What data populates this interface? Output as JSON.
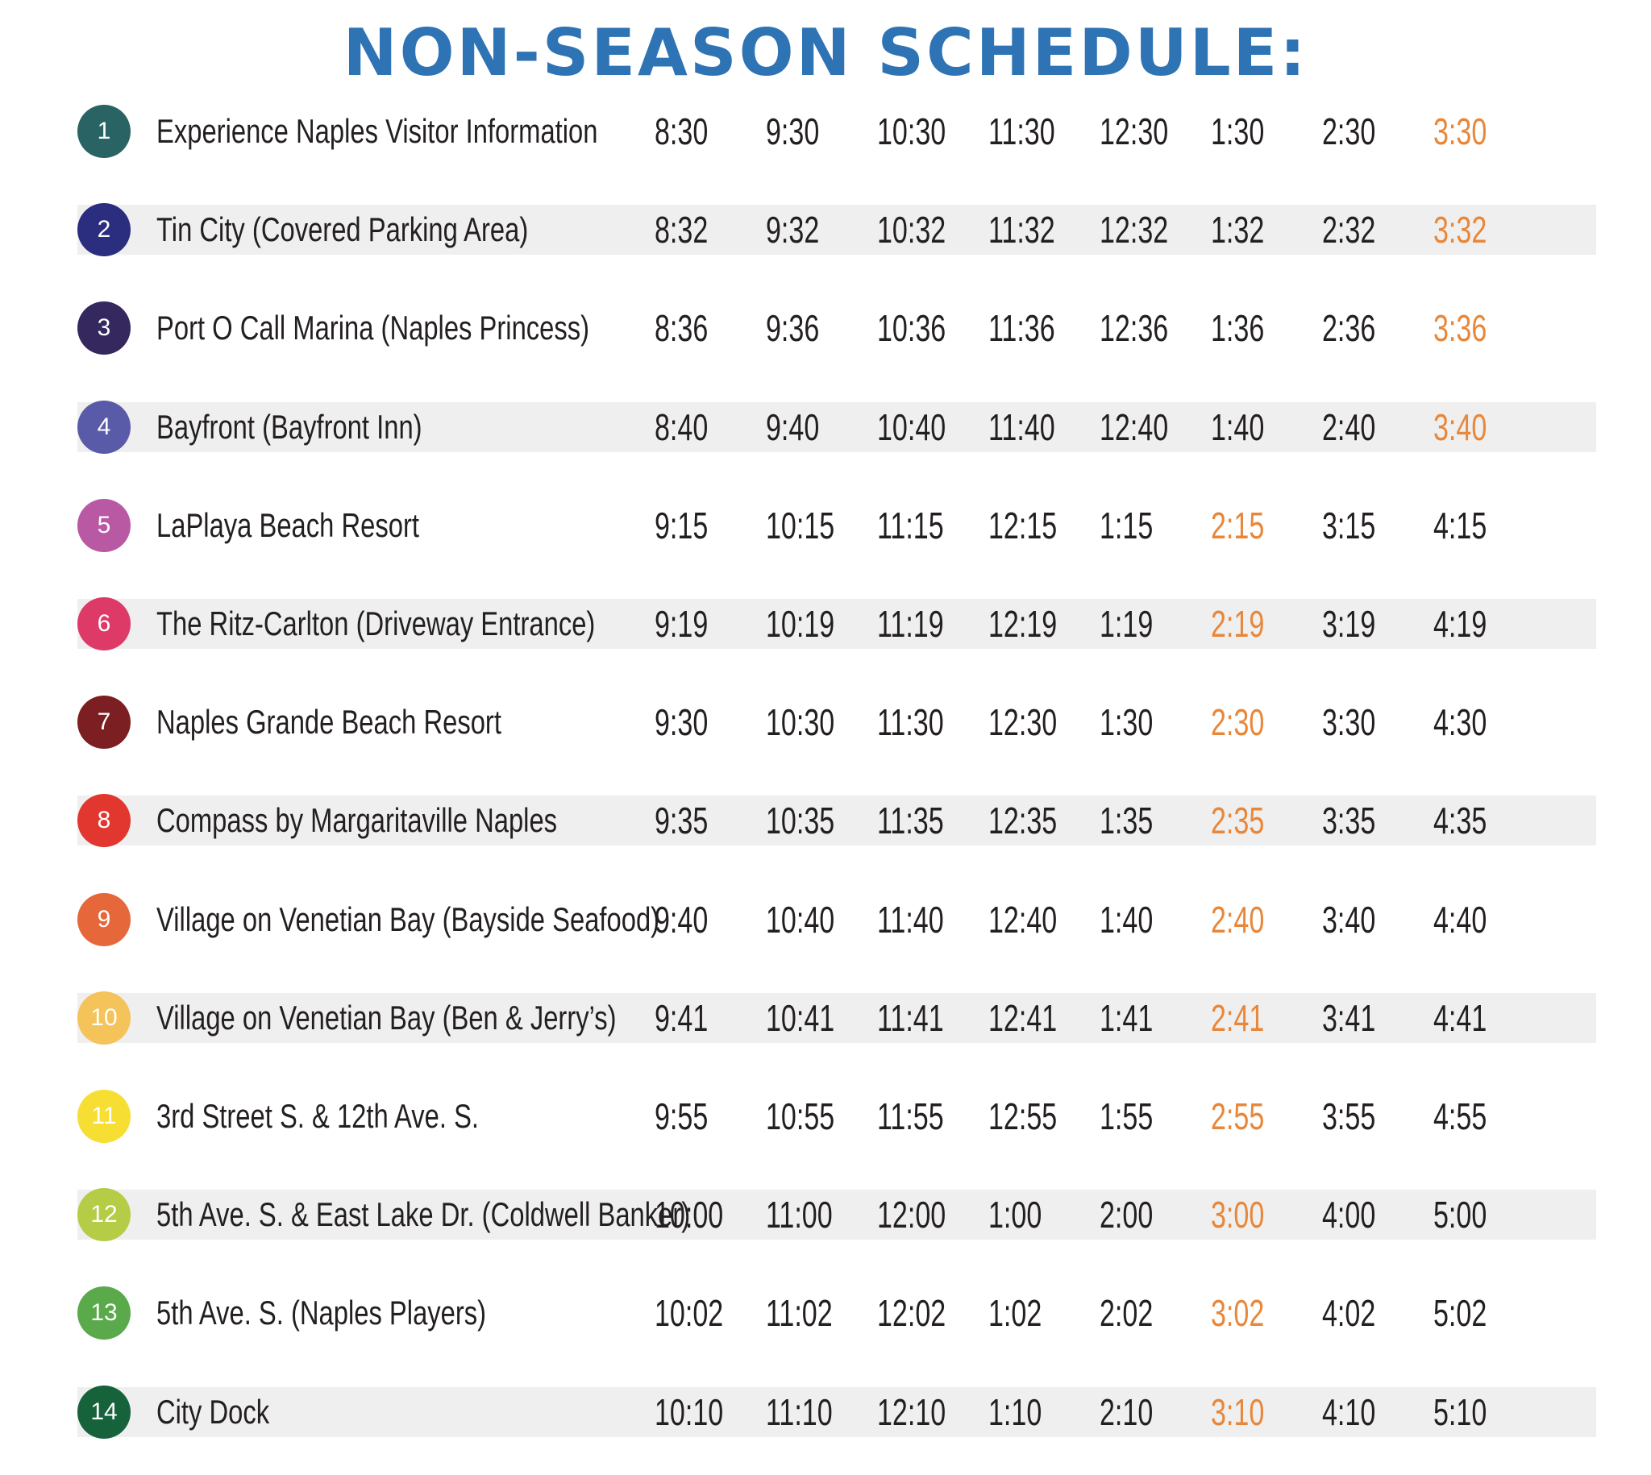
{
  "title": "NON-SEASON SCHEDULE:",
  "highlight_color": "#e8873a",
  "stops": [
    {
      "number": "1",
      "name": "Experience Naples Visitor Information",
      "color": "#2a6364",
      "times": [
        "8:30",
        "9:30",
        "10:30",
        "11:30",
        "12:30",
        "1:30",
        "2:30",
        "3:30"
      ],
      "highlight_index": 7
    },
    {
      "number": "2",
      "name": "Tin City (Covered Parking Area)",
      "color": "#2b2d7e",
      "times": [
        "8:32",
        "9:32",
        "10:32",
        "11:32",
        "12:32",
        "1:32",
        "2:32",
        "3:32"
      ],
      "highlight_index": 7
    },
    {
      "number": "3",
      "name": "Port O Call Marina (Naples Princess)",
      "color": "#35285e",
      "times": [
        "8:36",
        "9:36",
        "10:36",
        "11:36",
        "12:36",
        "1:36",
        "2:36",
        "3:36"
      ],
      "highlight_index": 7
    },
    {
      "number": "4",
      "name": "Bayfront (Bayfront Inn)",
      "color": "#5a5ba8",
      "times": [
        "8:40",
        "9:40",
        "10:40",
        "11:40",
        "12:40",
        "1:40",
        "2:40",
        "3:40"
      ],
      "highlight_index": 7
    },
    {
      "number": "5",
      "name": "LaPlaya Beach Resort",
      "color": "#b958a3",
      "times": [
        "9:15",
        "10:15",
        "11:15",
        "12:15",
        "1:15",
        "2:15",
        "3:15",
        "4:15"
      ],
      "highlight_index": 5
    },
    {
      "number": "6",
      "name": "The Ritz-Carlton (Driveway Entrance)",
      "color": "#de3a68",
      "times": [
        "9:19",
        "10:19",
        "11:19",
        "12:19",
        "1:19",
        "2:19",
        "3:19",
        "4:19"
      ],
      "highlight_index": 5
    },
    {
      "number": "7",
      "name": "Naples Grande Beach Resort",
      "color": "#7c1f22",
      "times": [
        "9:30",
        "10:30",
        "11:30",
        "12:30",
        "1:30",
        "2:30",
        "3:30",
        "4:30"
      ],
      "highlight_index": 5
    },
    {
      "number": "8",
      "name": "Compass by Margaritaville Naples",
      "color": "#e2372f",
      "times": [
        "9:35",
        "10:35",
        "11:35",
        "12:35",
        "1:35",
        "2:35",
        "3:35",
        "4:35"
      ],
      "highlight_index": 5
    },
    {
      "number": "9",
      "name": "Village on Venetian Bay (Bayside Seafood)",
      "color": "#e6683a",
      "times": [
        "9:40",
        "10:40",
        "11:40",
        "12:40",
        "1:40",
        "2:40",
        "3:40",
        "4:40"
      ],
      "highlight_index": 5
    },
    {
      "number": "10",
      "name": "Village on Venetian Bay (Ben & Jerry’s)",
      "color": "#f4c35a",
      "times": [
        "9:41",
        "10:41",
        "11:41",
        "12:41",
        "1:41",
        "2:41",
        "3:41",
        "4:41"
      ],
      "highlight_index": 5
    },
    {
      "number": "11",
      "name": "3rd Street S. & 12th Ave. S.",
      "color": "#f7de33",
      "times": [
        "9:55",
        "10:55",
        "11:55",
        "12:55",
        "1:55",
        "2:55",
        "3:55",
        "4:55"
      ],
      "highlight_index": 5
    },
    {
      "number": "12",
      "name": "5th Ave. S. & East Lake Dr. (Coldwell Banker)",
      "color": "#b5cc46",
      "times": [
        "10:00",
        "11:00",
        "12:00",
        "1:00",
        "2:00",
        "3:00",
        "4:00",
        "5:00"
      ],
      "highlight_index": 5
    },
    {
      "number": "13",
      "name": "5th Ave. S. (Naples Players)",
      "color": "#5aa94a",
      "times": [
        "10:02",
        "11:02",
        "12:02",
        "1:02",
        "2:02",
        "3:02",
        "4:02",
        "5:02"
      ],
      "highlight_index": 5
    },
    {
      "number": "14",
      "name": "City Dock",
      "color": "#16623b",
      "times": [
        "10:10",
        "11:10",
        "12:10",
        "1:10",
        "2:10",
        "3:10",
        "4:10",
        "5:10"
      ],
      "highlight_index": 5
    }
  ]
}
